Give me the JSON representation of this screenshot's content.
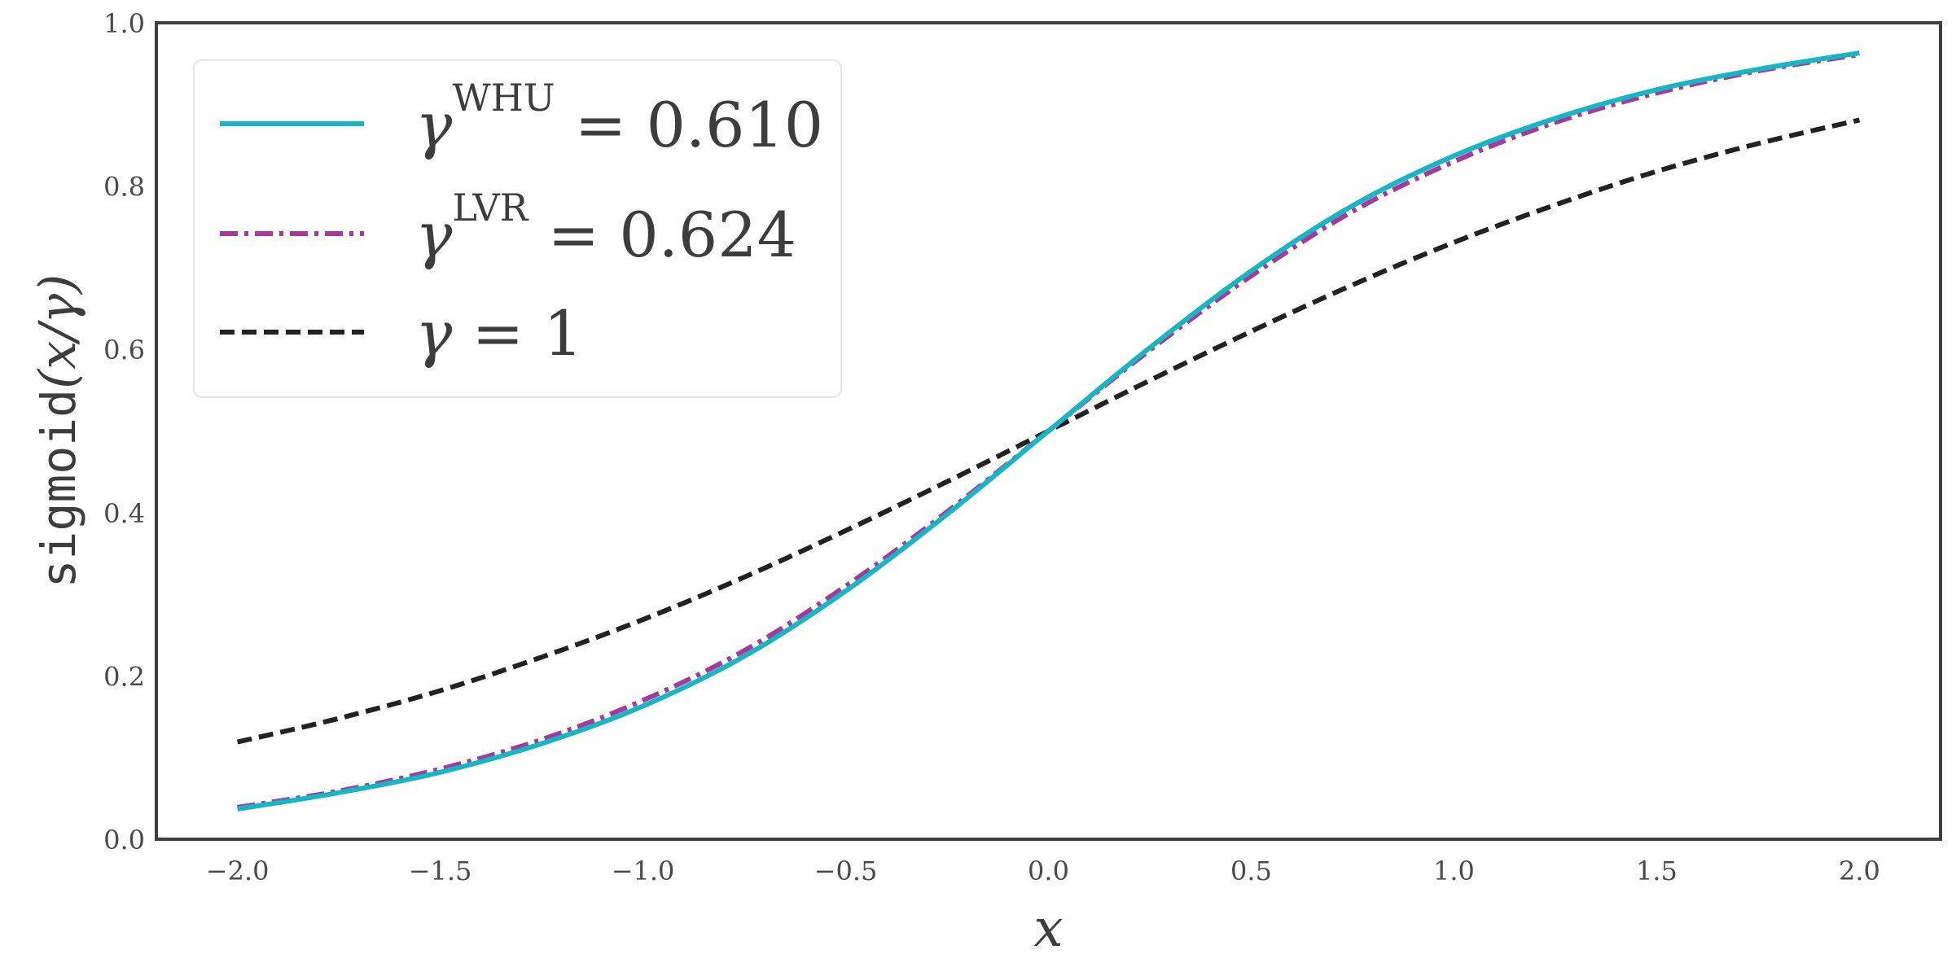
{
  "chart_data": {
    "type": "line",
    "xlabel": "x",
    "ylabel": {
      "mono": "sigmoid",
      "math": "(x/γ)"
    },
    "xlim": [
      -2.2,
      2.2
    ],
    "ylim": [
      0.0,
      1.0
    ],
    "x_ticks": [
      -2.0,
      -1.5,
      -1.0,
      -0.5,
      0.0,
      0.5,
      1.0,
      1.5,
      2.0
    ],
    "x_tick_labels": [
      "−2.0",
      "−1.5",
      "−1.0",
      "−0.5",
      "0.0",
      "0.5",
      "1.0",
      "1.5",
      "2.0"
    ],
    "y_ticks": [
      0.0,
      0.2,
      0.4,
      0.6,
      0.8,
      1.0
    ],
    "y_tick_labels": [
      "0.0",
      "0.2",
      "0.4",
      "0.6",
      "0.8",
      "1.0"
    ],
    "grid": false,
    "legend_position": "top-left",
    "x": [
      -2.0,
      -1.75,
      -1.5,
      -1.25,
      -1.0,
      -0.75,
      -0.5,
      -0.25,
      0.0,
      0.25,
      0.5,
      0.75,
      1.0,
      1.25,
      1.5,
      1.75,
      2.0
    ],
    "series": [
      {
        "key": "whu",
        "gamma_symbol": "γ",
        "superscript": "WHU",
        "value_text": " = 0.610",
        "color": "#17b6c4",
        "dash": "solid",
        "values": [
          0.037,
          0.057,
          0.082,
          0.117,
          0.163,
          0.224,
          0.304,
          0.398,
          0.5,
          0.602,
          0.696,
          0.776,
          0.837,
          0.883,
          0.918,
          0.943,
          0.963
        ]
      },
      {
        "key": "lvr",
        "gamma_symbol": "γ",
        "superscript": "LVR",
        "value_text": " = 0.624",
        "color": "#a8399c",
        "dash": "dashdot",
        "values": [
          0.039,
          0.059,
          0.086,
          0.122,
          0.17,
          0.231,
          0.31,
          0.401,
          0.5,
          0.599,
          0.69,
          0.769,
          0.83,
          0.878,
          0.914,
          0.941,
          0.961
        ]
      },
      {
        "key": "one",
        "gamma_symbol": "γ",
        "superscript": "",
        "value_text": " = 1",
        "color": "#222222",
        "dash": "dashed",
        "values": [
          0.119,
          0.148,
          0.182,
          0.223,
          0.269,
          0.321,
          0.378,
          0.438,
          0.5,
          0.562,
          0.622,
          0.679,
          0.731,
          0.777,
          0.818,
          0.852,
          0.881
        ]
      }
    ]
  }
}
